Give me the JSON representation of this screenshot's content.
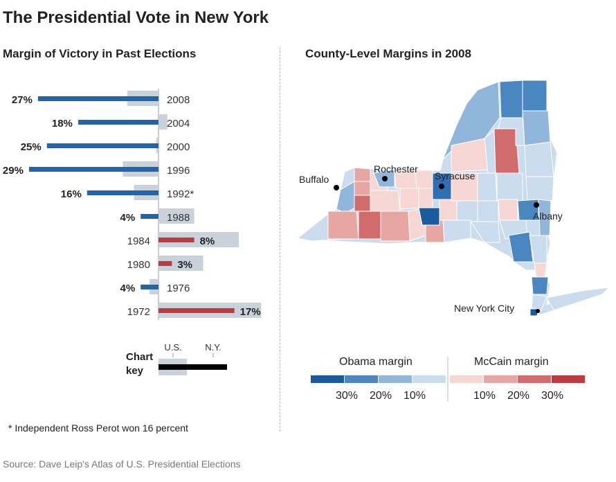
{
  "title": "The Presidential Vote in New York",
  "left_subtitle": "Margin of Victory in Past Elections",
  "right_subtitle": "County-Level Margins in 2008",
  "footnote": "* Independent Ross Perot won 16 percent",
  "source": "Source: Dave Leip's Atlas of U.S. Presidential Elections",
  "colors": {
    "democrat": "#2166ac",
    "republican": "#c0393f",
    "us_bar": "#c9d1db",
    "key_black": "#000000"
  },
  "chart_data": [
    {
      "type": "bar",
      "title": "Margin of Victory in Past Elections",
      "categories": [
        "2008",
        "2004",
        "2000",
        "1996",
        "1992*",
        "1988",
        "1984",
        "1980",
        "1976",
        "1972"
      ],
      "series": [
        {
          "name": "N.Y.",
          "values": [
            27,
            18,
            25,
            29,
            16,
            4,
            8,
            3,
            4,
            17
          ],
          "party": [
            "D",
            "D",
            "D",
            "D",
            "D",
            "D",
            "R",
            "R",
            "D",
            "R"
          ],
          "labels": [
            "27%",
            "18%",
            "25%",
            "29%",
            "16%",
            "4%",
            "8%",
            "3%",
            "4%",
            "17%"
          ]
        },
        {
          "name": "U.S.",
          "values": [
            7,
            2,
            0.5,
            8,
            5.5,
            8,
            18,
            10,
            2,
            23
          ],
          "party": [
            "D",
            "R",
            "D",
            "D",
            "D",
            "R",
            "R",
            "R",
            "D",
            "R"
          ]
        }
      ],
      "key": {
        "label": "Chart key",
        "us_label": "U.S.",
        "ny_label": "N.Y."
      },
      "xlim": [
        -30,
        30
      ]
    },
    {
      "type": "heatmap",
      "title": "County-Level Margins in 2008",
      "description_of_values": "county margin binned: negative = Obama, positive = McCain",
      "cities": [
        "Buffalo",
        "Rochester",
        "Syracuse",
        "Albany",
        "New York City"
      ],
      "legend": {
        "left_label": "Obama margin",
        "right_label": "McCain margin",
        "obama_ticks": [
          "30%",
          "20%",
          "10%"
        ],
        "mccain_ticks": [
          "10%",
          "20%",
          "30%"
        ],
        "colors": [
          "#1a5a9e",
          "#4a86c0",
          "#91b6db",
          "#cbdcee",
          "#f6d7d4",
          "#e8a6a3",
          "#d26b6b",
          "#c0393f"
        ]
      }
    }
  ]
}
